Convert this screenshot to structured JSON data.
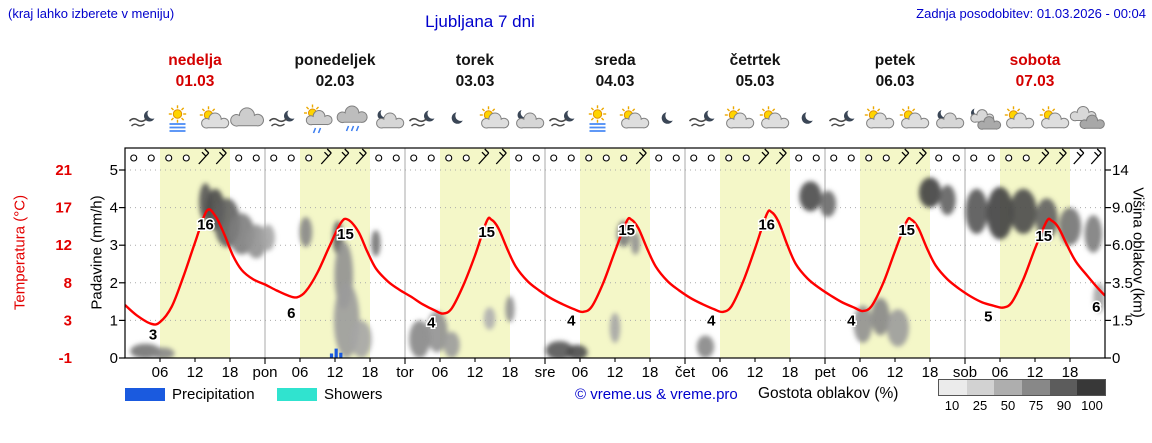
{
  "header": {
    "note": "(kraj lahko izberete v meniju)",
    "title": "Ljubljana 7 dni",
    "updated": "Zadnja posodobitev: 01.03.2026 - 00:04"
  },
  "colors": {
    "accent_blue": "#0000cc",
    "highlight_red": "#d40000",
    "temp_curve": "#ff0000",
    "day_band": "#f4f7c8",
    "precipitation": "#1a5adf",
    "showers": "#30e3cf"
  },
  "days": [
    {
      "name": "nedelja",
      "date": "01.03",
      "highlight": true,
      "icons": [
        "wind-moon",
        "sun-fog",
        "sun-cloud",
        "cloud"
      ]
    },
    {
      "name": "ponedeljek",
      "date": "02.03",
      "highlight": false,
      "icons": [
        "wind-moon",
        "sun-shower",
        "rain-cloud",
        "moon-cloud"
      ]
    },
    {
      "name": "torek",
      "date": "03.03",
      "highlight": false,
      "icons": [
        "wind-moon",
        "moon",
        "sun-cloud",
        "moon-cloud"
      ]
    },
    {
      "name": "sreda",
      "date": "04.03",
      "highlight": false,
      "icons": [
        "wind-moon",
        "sun-fog",
        "sun-cloud",
        "moon"
      ]
    },
    {
      "name": "četrtek",
      "date": "05.03",
      "highlight": false,
      "icons": [
        "wind-moon",
        "sun-cloud",
        "sun-cloud",
        "moon"
      ]
    },
    {
      "name": "petek",
      "date": "06.03",
      "highlight": false,
      "icons": [
        "wind-moon",
        "sun-cloud",
        "sun-cloud",
        "moon-cloud"
      ]
    },
    {
      "name": "sobota",
      "date": "07.03",
      "highlight": true,
      "icons": [
        "moon-clouds",
        "sun-cloud",
        "sun-cloud",
        "clouds"
      ]
    }
  ],
  "axes": {
    "temperature": {
      "title": "Temperatura (°C)",
      "ticks": [
        "21",
        "17",
        "12",
        "8",
        "3",
        "-1"
      ]
    },
    "precipitation": {
      "title": "Padavine (mm/h)",
      "ticks": [
        "5",
        "4",
        "3",
        "2",
        "1",
        "0"
      ]
    },
    "cloud_height": {
      "title": "Višina oblakov (km)",
      "ticks": [
        "14",
        "9.0",
        "6.0",
        "3.5",
        "1.5",
        "0"
      ]
    },
    "x_labels": [
      "06",
      "12",
      "18",
      "pon",
      "06",
      "12",
      "18",
      "tor",
      "06",
      "12",
      "18",
      "sre",
      "06",
      "12",
      "18",
      "čet",
      "06",
      "12",
      "18",
      "pet",
      "06",
      "12",
      "18",
      "sob",
      "06",
      "12",
      "18"
    ]
  },
  "legend": {
    "precipitation_label": "Precipitation",
    "showers_label": "Showers",
    "copyright": "© vreme.us & vreme.pro",
    "cloud_density_label": "Gostota oblakov (%)",
    "cloud_density_ticks": [
      "10",
      "25",
      "50",
      "75",
      "90",
      "100"
    ],
    "cloud_density_colors": [
      "#ebebeb",
      "#d2d2d2",
      "#aeaeae",
      "#888888",
      "#5c5c5c",
      "#383838"
    ]
  },
  "chart_data": {
    "type": "line",
    "title": "Ljubljana 7 dni meteogram",
    "x_unit": "hour (0 = nedelja 01.03 00:00, 168 = end of sobota 07.03)",
    "day_band_hours": [
      6,
      18
    ],
    "y_scale": {
      "precip_per_div": 1,
      "temp_at_0": -1,
      "temp_per_div": 4.4,
      "divisions": 5
    },
    "temperature_series": {
      "name": "Temperatura (°C)",
      "color": "#ff0000",
      "points": [
        [
          0,
          5.2
        ],
        [
          2,
          4.0
        ],
        [
          4.5,
          3.0
        ],
        [
          6,
          3.2
        ],
        [
          8,
          5.0
        ],
        [
          10,
          8.5
        ],
        [
          12,
          12.5
        ],
        [
          14,
          16.2
        ],
        [
          15.5,
          15.6
        ],
        [
          17,
          13.5
        ],
        [
          18.5,
          11.0
        ],
        [
          20,
          9.3
        ],
        [
          22,
          8.2
        ],
        [
          24,
          7.6
        ],
        [
          26,
          6.9
        ],
        [
          28,
          6.3
        ],
        [
          29.5,
          6.1
        ],
        [
          31,
          6.8
        ],
        [
          33,
          9.0
        ],
        [
          35,
          12.0
        ],
        [
          37,
          14.8
        ],
        [
          38.2,
          15.2
        ],
        [
          40,
          13.8
        ],
        [
          41.5,
          11.5
        ],
        [
          43,
          9.5
        ],
        [
          45,
          8.0
        ],
        [
          47,
          7.0
        ],
        [
          49,
          6.2
        ],
        [
          51,
          5.3
        ],
        [
          53,
          4.6
        ],
        [
          54.5,
          4.2
        ],
        [
          56,
          4.8
        ],
        [
          58,
          7.5
        ],
        [
          60,
          11.0
        ],
        [
          62,
          15.0
        ],
        [
          62.8,
          15.2
        ],
        [
          64,
          14.2
        ],
        [
          65.5,
          11.8
        ],
        [
          67,
          9.7
        ],
        [
          69,
          8.0
        ],
        [
          71,
          6.9
        ],
        [
          73,
          6.0
        ],
        [
          75,
          5.3
        ],
        [
          77,
          4.7
        ],
        [
          78.5,
          4.4
        ],
        [
          80,
          5.0
        ],
        [
          82,
          7.8
        ],
        [
          84,
          11.5
        ],
        [
          86,
          15.0
        ],
        [
          86.8,
          15.2
        ],
        [
          88,
          14.2
        ],
        [
          89.5,
          11.8
        ],
        [
          91,
          9.7
        ],
        [
          93,
          8.0
        ],
        [
          95,
          6.9
        ],
        [
          97,
          6.0
        ],
        [
          99,
          5.3
        ],
        [
          101,
          4.7
        ],
        [
          102.5,
          4.4
        ],
        [
          104,
          5.1
        ],
        [
          106,
          8.0
        ],
        [
          108,
          11.8
        ],
        [
          110,
          15.8
        ],
        [
          110.8,
          16.1
        ],
        [
          112,
          15.0
        ],
        [
          113.5,
          12.3
        ],
        [
          115,
          10.0
        ],
        [
          117,
          8.3
        ],
        [
          119,
          7.2
        ],
        [
          121,
          6.3
        ],
        [
          123,
          5.5
        ],
        [
          125,
          4.9
        ],
        [
          126.5,
          4.5
        ],
        [
          128,
          5.1
        ],
        [
          130,
          7.8
        ],
        [
          132,
          11.5
        ],
        [
          134,
          15.0
        ],
        [
          134.8,
          15.2
        ],
        [
          136,
          14.2
        ],
        [
          137.5,
          11.8
        ],
        [
          139,
          9.8
        ],
        [
          141,
          8.2
        ],
        [
          143,
          7.1
        ],
        [
          145,
          6.2
        ],
        [
          147,
          5.5
        ],
        [
          149,
          5.1
        ],
        [
          150.5,
          4.9
        ],
        [
          152,
          5.5
        ],
        [
          154,
          8.2
        ],
        [
          156,
          11.8
        ],
        [
          158,
          15.0
        ],
        [
          158.8,
          15.1
        ],
        [
          160,
          14.3
        ],
        [
          161.5,
          12.2
        ],
        [
          163,
          10.3
        ],
        [
          165,
          8.6
        ],
        [
          167,
          7.0
        ],
        [
          168,
          6.3
        ]
      ]
    },
    "temperature_labels": [
      {
        "t": 4.8,
        "v": 3,
        "s": 0.62
      },
      {
        "t": 13.8,
        "v": 16,
        "s": 3.55
      },
      {
        "t": 28.5,
        "v": 6,
        "s": 1.2
      },
      {
        "t": 37.8,
        "v": 15,
        "s": 3.3
      },
      {
        "t": 52.5,
        "v": 4,
        "s": 0.95
      },
      {
        "t": 62,
        "v": 15,
        "s": 3.35
      },
      {
        "t": 76.5,
        "v": 4,
        "s": 1.0
      },
      {
        "t": 86,
        "v": 15,
        "s": 3.4
      },
      {
        "t": 100.5,
        "v": 4,
        "s": 1.0
      },
      {
        "t": 110,
        "v": 16,
        "s": 3.55
      },
      {
        "t": 124.5,
        "v": 4,
        "s": 1.0
      },
      {
        "t": 134,
        "v": 15,
        "s": 3.4
      },
      {
        "t": 148,
        "v": 5,
        "s": 1.1
      },
      {
        "t": 157.5,
        "v": 15,
        "s": 3.25
      },
      {
        "t": 166.5,
        "v": 6,
        "s": 1.35
      }
    ],
    "precipitation_bars": [
      {
        "t": 35.4,
        "mmh": 0.12
      },
      {
        "t": 36.2,
        "mmh": 0.25
      },
      {
        "t": 37.0,
        "mmh": 0.14
      }
    ],
    "wind_symbols": [
      "o",
      "o",
      "o",
      "o",
      "b",
      "b",
      "o",
      "o",
      "o",
      "o",
      "o",
      "b",
      "b",
      "b",
      "o",
      "o",
      "o",
      "o",
      "o",
      "o",
      "b",
      "b",
      "o",
      "o",
      "o",
      "o",
      "o",
      "o",
      "o",
      "b",
      "o",
      "o",
      "o",
      "o",
      "o",
      "o",
      "b",
      "b",
      "o",
      "o",
      "o",
      "o",
      "o",
      "o",
      "b",
      "b",
      "o",
      "o",
      "o",
      "o",
      "o",
      "o",
      "b",
      "b",
      "b",
      "b"
    ],
    "clouds": [
      {
        "t": 3.5,
        "l": 0.18,
        "rx": 2.6,
        "ry": 0.2,
        "d": 0.6
      },
      {
        "t": 6.5,
        "l": 0.12,
        "rx": 2.0,
        "ry": 0.16,
        "d": 0.5
      },
      {
        "t": 13.8,
        "l": 4.15,
        "rx": 1.1,
        "ry": 0.5,
        "d": 0.75
      },
      {
        "t": 15.5,
        "l": 3.95,
        "rx": 1.6,
        "ry": 0.55,
        "d": 0.8
      },
      {
        "t": 17.5,
        "l": 3.6,
        "rx": 2.2,
        "ry": 0.65,
        "d": 0.7
      },
      {
        "t": 20,
        "l": 3.3,
        "rx": 2.2,
        "ry": 0.55,
        "d": 0.55
      },
      {
        "t": 22.5,
        "l": 3.1,
        "rx": 1.8,
        "ry": 0.45,
        "d": 0.45
      },
      {
        "t": 24.5,
        "l": 3.2,
        "rx": 1.2,
        "ry": 0.35,
        "d": 0.35
      },
      {
        "t": 31,
        "l": 3.35,
        "rx": 1.1,
        "ry": 0.4,
        "d": 0.5
      },
      {
        "t": 36.5,
        "l": 3.2,
        "rx": 0.9,
        "ry": 0.45,
        "d": 0.7
      },
      {
        "t": 37.5,
        "l": 2.2,
        "rx": 1.6,
        "ry": 0.9,
        "d": 0.45
      },
      {
        "t": 38,
        "l": 1.0,
        "rx": 2.2,
        "ry": 1.0,
        "d": 0.4
      },
      {
        "t": 40.5,
        "l": 0.5,
        "rx": 1.8,
        "ry": 0.5,
        "d": 0.35
      },
      {
        "t": 43,
        "l": 3.05,
        "rx": 0.8,
        "ry": 0.35,
        "d": 0.6
      },
      {
        "t": 50.5,
        "l": 0.5,
        "rx": 1.8,
        "ry": 0.5,
        "d": 0.5
      },
      {
        "t": 53.5,
        "l": 0.7,
        "rx": 1.8,
        "ry": 0.55,
        "d": 0.45
      },
      {
        "t": 56,
        "l": 0.35,
        "rx": 1.4,
        "ry": 0.35,
        "d": 0.4
      },
      {
        "t": 62.5,
        "l": 1.05,
        "rx": 1.0,
        "ry": 0.3,
        "d": 0.3
      },
      {
        "t": 66,
        "l": 1.3,
        "rx": 0.8,
        "ry": 0.35,
        "d": 0.45
      },
      {
        "t": 74.5,
        "l": 0.2,
        "rx": 2.4,
        "ry": 0.25,
        "d": 0.75
      },
      {
        "t": 77.5,
        "l": 0.15,
        "rx": 1.8,
        "ry": 0.2,
        "d": 0.8
      },
      {
        "t": 84,
        "l": 0.8,
        "rx": 0.9,
        "ry": 0.4,
        "d": 0.35
      },
      {
        "t": 85.5,
        "l": 3.3,
        "rx": 1.2,
        "ry": 0.35,
        "d": 0.55
      },
      {
        "t": 87.5,
        "l": 3.05,
        "rx": 0.8,
        "ry": 0.3,
        "d": 0.45
      },
      {
        "t": 99.5,
        "l": 0.3,
        "rx": 1.5,
        "ry": 0.3,
        "d": 0.5
      },
      {
        "t": 117.5,
        "l": 4.3,
        "rx": 1.9,
        "ry": 0.4,
        "d": 0.8
      },
      {
        "t": 120.5,
        "l": 4.1,
        "rx": 1.4,
        "ry": 0.35,
        "d": 0.65
      },
      {
        "t": 126.5,
        "l": 0.9,
        "rx": 1.6,
        "ry": 0.5,
        "d": 0.45
      },
      {
        "t": 129.5,
        "l": 1.1,
        "rx": 1.6,
        "ry": 0.5,
        "d": 0.5
      },
      {
        "t": 132.5,
        "l": 0.8,
        "rx": 1.9,
        "ry": 0.5,
        "d": 0.4
      },
      {
        "t": 138,
        "l": 4.4,
        "rx": 1.9,
        "ry": 0.4,
        "d": 0.85
      },
      {
        "t": 141,
        "l": 4.2,
        "rx": 1.4,
        "ry": 0.4,
        "d": 0.7
      },
      {
        "t": 146,
        "l": 3.9,
        "rx": 1.9,
        "ry": 0.6,
        "d": 0.75
      },
      {
        "t": 150,
        "l": 3.85,
        "rx": 2.3,
        "ry": 0.7,
        "d": 0.85
      },
      {
        "t": 154,
        "l": 3.9,
        "rx": 2.3,
        "ry": 0.6,
        "d": 0.8
      },
      {
        "t": 158,
        "l": 3.7,
        "rx": 1.9,
        "ry": 0.55,
        "d": 0.7
      },
      {
        "t": 162,
        "l": 3.5,
        "rx": 1.9,
        "ry": 0.5,
        "d": 0.6
      },
      {
        "t": 166,
        "l": 3.3,
        "rx": 1.5,
        "ry": 0.5,
        "d": 0.55
      },
      {
        "t": 167,
        "l": 1.6,
        "rx": 1.0,
        "ry": 0.4,
        "d": 0.35
      }
    ]
  }
}
